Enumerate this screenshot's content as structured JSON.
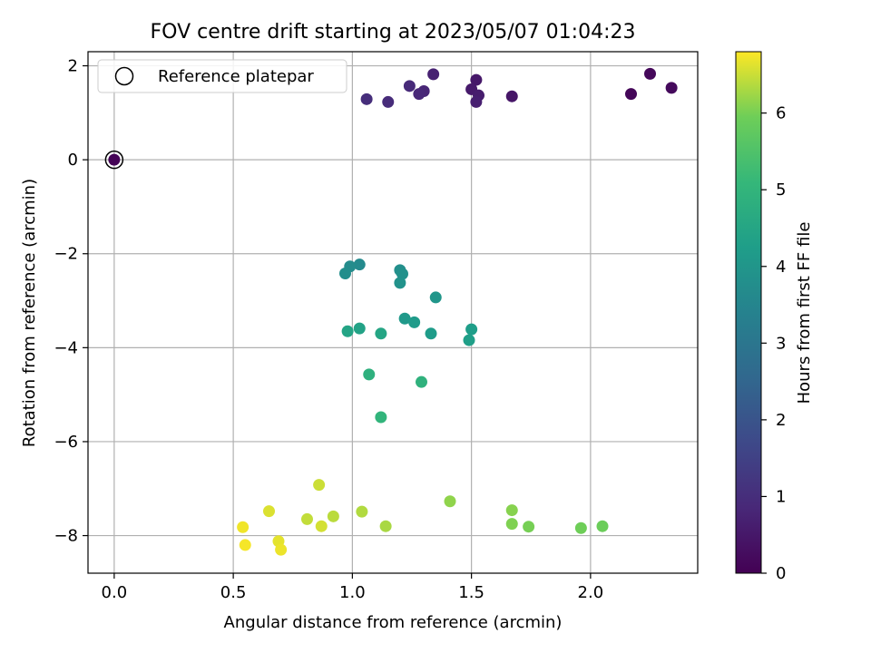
{
  "chart_data": {
    "type": "scatter",
    "title": "FOV centre drift starting at 2023/05/07 01:04:23",
    "xlabel": "Angular distance from reference (arcmin)",
    "ylabel": "Rotation from reference (arcmin)",
    "xlim": [
      -0.11,
      2.45
    ],
    "ylim": [
      -8.8,
      2.3
    ],
    "xticks": [
      0.0,
      0.5,
      1.0,
      1.5,
      2.0
    ],
    "xtick_labels": [
      "0.0",
      "0.5",
      "1.0",
      "1.5",
      "2.0"
    ],
    "yticks": [
      2,
      0,
      -2,
      -4,
      -6,
      -8
    ],
    "ytick_labels": [
      "2",
      "0",
      "−2",
      "−4",
      "−6",
      "−8"
    ],
    "grid": true,
    "legend": {
      "position": "top-left",
      "entries": [
        "Reference platepar"
      ]
    },
    "colorbar": {
      "label": "Hours from first FF file",
      "colormap": "viridis",
      "range": [
        0,
        6.8
      ],
      "ticks": [
        0,
        1,
        2,
        3,
        4,
        5,
        6
      ],
      "tick_labels": [
        "0",
        "1",
        "2",
        "3",
        "4",
        "5",
        "6"
      ]
    },
    "reference_point": {
      "x": 0.0,
      "y": 0.0,
      "hours": 0.0
    },
    "points": [
      {
        "x": 0.0,
        "y": 0.0,
        "hours": 0.05
      },
      {
        "x": 2.17,
        "y": 1.4,
        "hours": 0.1
      },
      {
        "x": 2.25,
        "y": 1.83,
        "hours": 0.15
      },
      {
        "x": 2.34,
        "y": 1.53,
        "hours": 0.2
      },
      {
        "x": 1.67,
        "y": 1.35,
        "hours": 0.45
      },
      {
        "x": 1.52,
        "y": 1.7,
        "hours": 0.5
      },
      {
        "x": 1.5,
        "y": 1.5,
        "hours": 0.55
      },
      {
        "x": 1.53,
        "y": 1.37,
        "hours": 0.6
      },
      {
        "x": 1.52,
        "y": 1.23,
        "hours": 0.65
      },
      {
        "x": 1.34,
        "y": 1.82,
        "hours": 0.7
      },
      {
        "x": 1.3,
        "y": 1.46,
        "hours": 0.8
      },
      {
        "x": 1.28,
        "y": 1.4,
        "hours": 0.85
      },
      {
        "x": 1.24,
        "y": 1.57,
        "hours": 0.9
      },
      {
        "x": 1.15,
        "y": 1.23,
        "hours": 0.95
      },
      {
        "x": 1.06,
        "y": 1.29,
        "hours": 1.0
      },
      {
        "x": 1.03,
        "y": -2.23,
        "hours": 3.65
      },
      {
        "x": 0.99,
        "y": -2.27,
        "hours": 3.7
      },
      {
        "x": 0.97,
        "y": -2.42,
        "hours": 3.75
      },
      {
        "x": 1.2,
        "y": -2.35,
        "hours": 3.8
      },
      {
        "x": 1.21,
        "y": -2.43,
        "hours": 3.85
      },
      {
        "x": 1.2,
        "y": -2.62,
        "hours": 3.9
      },
      {
        "x": 1.35,
        "y": -2.93,
        "hours": 4.0
      },
      {
        "x": 1.22,
        "y": -3.38,
        "hours": 4.1
      },
      {
        "x": 1.26,
        "y": -3.46,
        "hours": 4.15
      },
      {
        "x": 1.33,
        "y": -3.7,
        "hours": 4.2
      },
      {
        "x": 1.5,
        "y": -3.61,
        "hours": 4.25
      },
      {
        "x": 1.49,
        "y": -3.84,
        "hours": 4.3
      },
      {
        "x": 1.03,
        "y": -3.59,
        "hours": 4.4
      },
      {
        "x": 0.98,
        "y": -3.65,
        "hours": 4.45
      },
      {
        "x": 1.12,
        "y": -3.7,
        "hours": 4.5
      },
      {
        "x": 1.07,
        "y": -4.57,
        "hours": 4.85
      },
      {
        "x": 1.29,
        "y": -4.73,
        "hours": 4.9
      },
      {
        "x": 1.12,
        "y": -5.48,
        "hours": 5.0
      },
      {
        "x": 2.05,
        "y": -7.8,
        "hours": 5.9
      },
      {
        "x": 1.96,
        "y": -7.84,
        "hours": 5.95
      },
      {
        "x": 1.74,
        "y": -7.81,
        "hours": 6.0
      },
      {
        "x": 1.67,
        "y": -7.75,
        "hours": 6.05
      },
      {
        "x": 1.67,
        "y": -7.46,
        "hours": 6.1
      },
      {
        "x": 1.41,
        "y": -7.27,
        "hours": 6.15
      },
      {
        "x": 1.14,
        "y": -7.8,
        "hours": 6.3
      },
      {
        "x": 1.04,
        "y": -7.49,
        "hours": 6.35
      },
      {
        "x": 0.92,
        "y": -7.59,
        "hours": 6.4
      },
      {
        "x": 0.81,
        "y": -7.65,
        "hours": 6.45
      },
      {
        "x": 0.86,
        "y": -6.92,
        "hours": 6.5
      },
      {
        "x": 0.87,
        "y": -7.8,
        "hours": 6.55
      },
      {
        "x": 0.65,
        "y": -7.48,
        "hours": 6.6
      },
      {
        "x": 0.69,
        "y": -8.12,
        "hours": 6.65
      },
      {
        "x": 0.7,
        "y": -8.3,
        "hours": 6.7
      },
      {
        "x": 0.54,
        "y": -7.82,
        "hours": 6.72
      },
      {
        "x": 0.55,
        "y": -8.2,
        "hours": 6.75
      }
    ]
  }
}
